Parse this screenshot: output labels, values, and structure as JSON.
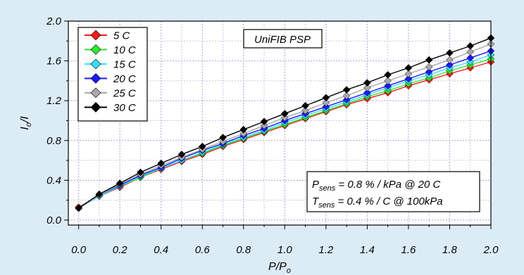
{
  "chart_data": {
    "type": "line",
    "title": "",
    "annotation_title": "UniFIB PSP",
    "sensitivity": {
      "p_symbol": "P",
      "p_sub": "sens",
      "p_text": " = 0.8 % / kPa @ 20 C",
      "t_symbol": "T",
      "t_sub": "sens",
      "t_text": " = 0.4 % / C @ 100kPa"
    },
    "xlabel": {
      "main": "P/P",
      "sub": "o"
    },
    "ylabel": {
      "main": "I",
      "sub": "o",
      "tail": "/I"
    },
    "xlim": [
      -0.05,
      2.0
    ],
    "ylim": [
      -0.05,
      2.0
    ],
    "xticks": [
      "0.0",
      "0.2",
      "0.4",
      "0.6",
      "0.8",
      "1.0",
      "1.2",
      "1.4",
      "1.6",
      "1.8",
      "2.0"
    ],
    "yticks": [
      "0.0",
      "0.4",
      "0.8",
      "1.2",
      "1.6",
      "2.0"
    ],
    "grid": true,
    "legend_position": "top-left",
    "x": [
      0.0,
      0.1,
      0.2,
      0.3,
      0.4,
      0.5,
      0.6,
      0.7,
      0.8,
      0.9,
      1.0,
      1.1,
      1.2,
      1.3,
      1.4,
      1.5,
      1.6,
      1.7,
      1.8,
      1.9,
      2.0
    ],
    "series": [
      {
        "name": "5 C",
        "color": "#ff1a1a",
        "values": [
          0.13,
          0.24,
          0.33,
          0.43,
          0.51,
          0.59,
          0.66,
          0.74,
          0.81,
          0.88,
          0.95,
          1.02,
          1.09,
          1.16,
          1.22,
          1.28,
          1.35,
          1.41,
          1.47,
          1.53,
          1.59
        ]
      },
      {
        "name": "10 C",
        "color": "#2ee82e",
        "values": [
          0.12,
          0.24,
          0.34,
          0.43,
          0.52,
          0.6,
          0.67,
          0.75,
          0.82,
          0.89,
          0.96,
          1.03,
          1.1,
          1.17,
          1.24,
          1.3,
          1.37,
          1.43,
          1.5,
          1.56,
          1.62
        ]
      },
      {
        "name": "15 C",
        "color": "#33e0ff",
        "values": [
          0.12,
          0.24,
          0.34,
          0.44,
          0.52,
          0.6,
          0.68,
          0.76,
          0.83,
          0.9,
          0.98,
          1.05,
          1.12,
          1.19,
          1.26,
          1.33,
          1.4,
          1.46,
          1.53,
          1.59,
          1.66
        ]
      },
      {
        "name": "20 C",
        "color": "#1a1aff",
        "values": [
          0.12,
          0.25,
          0.35,
          0.45,
          0.53,
          0.62,
          0.7,
          0.77,
          0.85,
          0.92,
          1.0,
          1.07,
          1.14,
          1.21,
          1.28,
          1.35,
          1.42,
          1.49,
          1.56,
          1.63,
          1.7
        ]
      },
      {
        "name": "25 C",
        "color": "#a9a9a9",
        "values": [
          0.12,
          0.25,
          0.36,
          0.46,
          0.55,
          0.63,
          0.71,
          0.79,
          0.87,
          0.95,
          1.03,
          1.1,
          1.18,
          1.25,
          1.33,
          1.4,
          1.47,
          1.54,
          1.61,
          1.69,
          1.77
        ]
      },
      {
        "name": "30 C",
        "color": "#000000",
        "values": [
          0.12,
          0.26,
          0.37,
          0.48,
          0.57,
          0.66,
          0.74,
          0.83,
          0.91,
          0.99,
          1.07,
          1.15,
          1.23,
          1.31,
          1.38,
          1.46,
          1.53,
          1.61,
          1.68,
          1.75,
          1.83
        ]
      }
    ]
  }
}
